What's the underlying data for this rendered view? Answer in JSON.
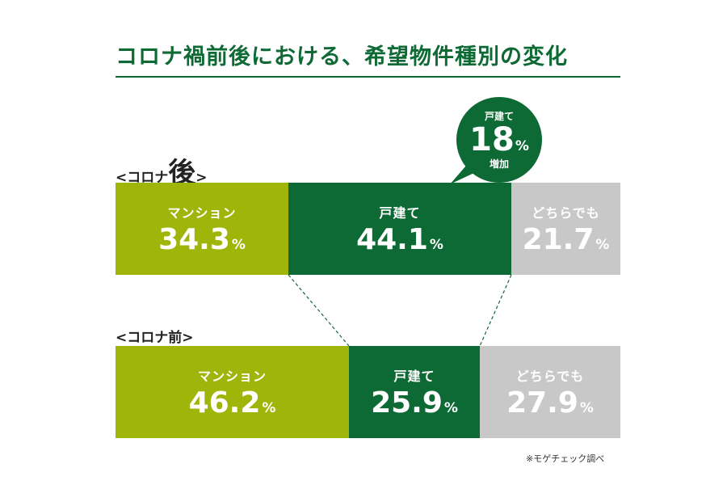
{
  "title": "コロナ禍前後における、希望物件種別の変化",
  "source": "※モゲチェック調べ",
  "callout": {
    "top": "戸建て",
    "number": "18",
    "unit": "%",
    "bottom": "増加"
  },
  "colors": {
    "mansion": "#9fb50a",
    "house": "#0e6a34",
    "either": "#c8c8c8",
    "title": "#0e6a34"
  },
  "chart_data": {
    "type": "bar",
    "orientation": "horizontal-stacked-100",
    "title": "コロナ禍前後における、希望物件種別の変化",
    "unit": "%",
    "rows": [
      {
        "label_prefix": "<コロナ",
        "label_emph": "後",
        "label_suffix": ">",
        "segments": [
          {
            "label": "マンション",
            "value": 34.3
          },
          {
            "label": "戸建て",
            "value": 44.1
          },
          {
            "label": "どちらでも",
            "value": 21.7
          }
        ]
      },
      {
        "label_prefix": "<コロナ",
        "label_emph": "前",
        "label_suffix": ">",
        "segments": [
          {
            "label": "マンション",
            "value": 46.2
          },
          {
            "label": "戸建て",
            "value": 25.9
          },
          {
            "label": "どちらでも",
            "value": 27.9
          }
        ]
      }
    ]
  }
}
